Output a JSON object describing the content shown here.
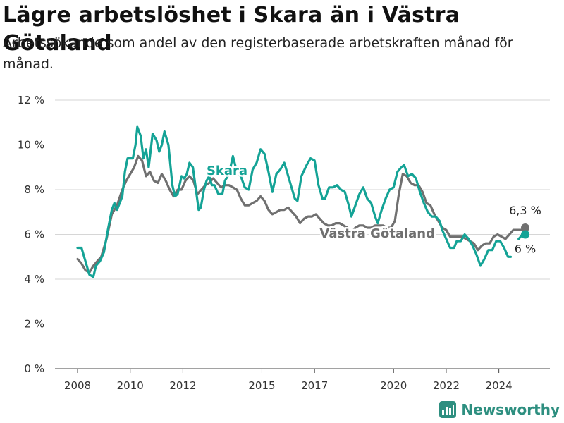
{
  "title": "Lägre arbetslöshet i Skara än i Västra Götaland",
  "subtitle": "Arbetssökande som andel av den registerbaserade arbetskraften månad för månad.",
  "brand": {
    "name": "Newsworthy",
    "icon": "newsworthy-logo-icon",
    "color": "#2e8f80"
  },
  "chart_data": {
    "type": "line",
    "title": "Lägre arbetslöshet i Skara än i Västra Götaland",
    "subtitle": "Arbetssökande som andel av den registerbaserade arbetskraften månad för månad.",
    "ylim": [
      0,
      12
    ],
    "xlim": [
      2007.0,
      2025.75
    ],
    "y_ticks": [
      0,
      2,
      4,
      6,
      8,
      10,
      12
    ],
    "y_tick_labels": [
      "0 %",
      "2 %",
      "4 %",
      "6 %",
      "8 %",
      "10 %",
      "12 %"
    ],
    "x_ticks": [
      2008,
      2010,
      2012,
      2015,
      2017,
      2020,
      2022,
      2024
    ],
    "x_tick_labels": [
      "2008",
      "2010",
      "2012",
      "2015",
      "2017",
      "2020",
      "2022",
      "2024"
    ],
    "grid": "horizontal",
    "series": [
      {
        "name": "Skara",
        "color": "#14a396",
        "end_label": "6 %",
        "points": [
          [
            2008.0,
            5.4
          ],
          [
            2008.15,
            5.4
          ],
          [
            2008.3,
            4.8
          ],
          [
            2008.45,
            4.2
          ],
          [
            2008.6,
            4.1
          ],
          [
            2008.7,
            4.6
          ],
          [
            2008.85,
            4.8
          ],
          [
            2009.0,
            5.2
          ],
          [
            2009.15,
            6.2
          ],
          [
            2009.3,
            7.1
          ],
          [
            2009.4,
            7.4
          ],
          [
            2009.5,
            7.1
          ],
          [
            2009.7,
            7.7
          ],
          [
            2009.8,
            8.8
          ],
          [
            2009.9,
            9.4
          ],
          [
            2010.1,
            9.4
          ],
          [
            2010.2,
            10.0
          ],
          [
            2010.27,
            10.8
          ],
          [
            2010.4,
            10.4
          ],
          [
            2010.5,
            9.4
          ],
          [
            2010.6,
            9.8
          ],
          [
            2010.7,
            9.0
          ],
          [
            2010.85,
            10.5
          ],
          [
            2011.0,
            10.2
          ],
          [
            2011.1,
            9.7
          ],
          [
            2011.2,
            10.0
          ],
          [
            2011.3,
            10.6
          ],
          [
            2011.45,
            10.0
          ],
          [
            2011.6,
            8.2
          ],
          [
            2011.7,
            7.7
          ],
          [
            2011.8,
            7.8
          ],
          [
            2011.95,
            8.6
          ],
          [
            2012.05,
            8.5
          ],
          [
            2012.15,
            8.7
          ],
          [
            2012.25,
            9.2
          ],
          [
            2012.38,
            9.0
          ],
          [
            2012.45,
            8.4
          ],
          [
            2012.6,
            7.1
          ],
          [
            2012.68,
            7.2
          ],
          [
            2012.8,
            8.0
          ],
          [
            2012.9,
            8.4
          ],
          [
            2013.0,
            8.6
          ],
          [
            2013.1,
            8.2
          ],
          [
            2013.2,
            8.2
          ],
          [
            2013.35,
            7.8
          ],
          [
            2013.5,
            7.8
          ],
          [
            2013.6,
            8.4
          ],
          [
            2013.75,
            8.7
          ],
          [
            2013.9,
            9.5
          ],
          [
            2014.05,
            8.8
          ],
          [
            2014.2,
            8.6
          ],
          [
            2014.35,
            8.1
          ],
          [
            2014.5,
            8.0
          ],
          [
            2014.65,
            8.9
          ],
          [
            2014.8,
            9.2
          ],
          [
            2014.95,
            9.8
          ],
          [
            2015.1,
            9.6
          ],
          [
            2015.25,
            8.8
          ],
          [
            2015.4,
            7.9
          ],
          [
            2015.55,
            8.7
          ],
          [
            2015.7,
            8.9
          ],
          [
            2015.85,
            9.2
          ],
          [
            2015.95,
            8.8
          ],
          [
            2016.1,
            8.2
          ],
          [
            2016.25,
            7.6
          ],
          [
            2016.35,
            7.5
          ],
          [
            2016.5,
            8.6
          ],
          [
            2016.7,
            9.1
          ],
          [
            2016.85,
            9.4
          ],
          [
            2017.0,
            9.3
          ],
          [
            2017.15,
            8.2
          ],
          [
            2017.3,
            7.6
          ],
          [
            2017.4,
            7.6
          ],
          [
            2017.55,
            8.1
          ],
          [
            2017.7,
            8.1
          ],
          [
            2017.85,
            8.2
          ],
          [
            2018.0,
            8.0
          ],
          [
            2018.15,
            7.9
          ],
          [
            2018.3,
            7.3
          ],
          [
            2018.4,
            6.8
          ],
          [
            2018.55,
            7.3
          ],
          [
            2018.7,
            7.8
          ],
          [
            2018.85,
            8.1
          ],
          [
            2019.0,
            7.6
          ],
          [
            2019.15,
            7.4
          ],
          [
            2019.3,
            6.8
          ],
          [
            2019.4,
            6.5
          ],
          [
            2019.55,
            7.1
          ],
          [
            2019.7,
            7.6
          ],
          [
            2019.85,
            8.0
          ],
          [
            2020.0,
            8.1
          ],
          [
            2020.15,
            8.8
          ],
          [
            2020.3,
            9.0
          ],
          [
            2020.4,
            9.1
          ],
          [
            2020.55,
            8.6
          ],
          [
            2020.7,
            8.7
          ],
          [
            2020.85,
            8.5
          ],
          [
            2021.0,
            7.9
          ],
          [
            2021.15,
            7.4
          ],
          [
            2021.3,
            7.0
          ],
          [
            2021.45,
            6.8
          ],
          [
            2021.6,
            6.8
          ],
          [
            2021.75,
            6.6
          ],
          [
            2021.85,
            6.2
          ],
          [
            2022.0,
            5.8
          ],
          [
            2022.15,
            5.4
          ],
          [
            2022.3,
            5.4
          ],
          [
            2022.4,
            5.7
          ],
          [
            2022.55,
            5.7
          ],
          [
            2022.7,
            6.0
          ],
          [
            2022.85,
            5.8
          ],
          [
            2023.0,
            5.5
          ],
          [
            2023.15,
            5.1
          ],
          [
            2023.3,
            4.6
          ],
          [
            2023.45,
            4.9
          ],
          [
            2023.6,
            5.3
          ],
          [
            2023.75,
            5.3
          ],
          [
            2023.9,
            5.7
          ],
          [
            2024.05,
            5.7
          ],
          [
            2024.2,
            5.4
          ],
          [
            2024.35,
            5.0
          ],
          [
            2024.45,
            5.0
          ]
        ],
        "points_after_gap": [
          [
            2024.75,
            5.8
          ],
          [
            2024.9,
            6.0
          ],
          [
            2025.0,
            6.0
          ]
        ]
      },
      {
        "name": "Västra Götaland",
        "color": "#707070",
        "end_label": "6,3 %",
        "points": [
          [
            2008.0,
            4.9
          ],
          [
            2008.15,
            4.7
          ],
          [
            2008.3,
            4.4
          ],
          [
            2008.45,
            4.3
          ],
          [
            2008.6,
            4.6
          ],
          [
            2008.75,
            4.8
          ],
          [
            2008.9,
            5.0
          ],
          [
            2009.1,
            5.8
          ],
          [
            2009.3,
            6.9
          ],
          [
            2009.5,
            7.3
          ],
          [
            2009.7,
            8.0
          ],
          [
            2009.85,
            8.4
          ],
          [
            2010.0,
            8.7
          ],
          [
            2010.15,
            9.0
          ],
          [
            2010.3,
            9.5
          ],
          [
            2010.45,
            9.3
          ],
          [
            2010.6,
            8.6
          ],
          [
            2010.75,
            8.8
          ],
          [
            2010.9,
            8.4
          ],
          [
            2011.05,
            8.3
          ],
          [
            2011.2,
            8.7
          ],
          [
            2011.35,
            8.4
          ],
          [
            2011.5,
            8.0
          ],
          [
            2011.65,
            7.7
          ],
          [
            2011.8,
            8.0
          ],
          [
            2011.95,
            8.0
          ],
          [
            2012.1,
            8.4
          ],
          [
            2012.25,
            8.6
          ],
          [
            2012.4,
            8.4
          ],
          [
            2012.55,
            7.8
          ],
          [
            2012.7,
            8.0
          ],
          [
            2012.85,
            8.2
          ],
          [
            2013.0,
            8.3
          ],
          [
            2013.15,
            8.5
          ],
          [
            2013.3,
            8.3
          ],
          [
            2013.45,
            8.1
          ],
          [
            2013.6,
            8.2
          ],
          [
            2013.75,
            8.2
          ],
          [
            2013.9,
            8.1
          ],
          [
            2014.05,
            8.0
          ],
          [
            2014.2,
            7.6
          ],
          [
            2014.35,
            7.3
          ],
          [
            2014.5,
            7.3
          ],
          [
            2014.65,
            7.4
          ],
          [
            2014.8,
            7.5
          ],
          [
            2014.95,
            7.7
          ],
          [
            2015.1,
            7.5
          ],
          [
            2015.25,
            7.1
          ],
          [
            2015.4,
            6.9
          ],
          [
            2015.55,
            7.0
          ],
          [
            2015.7,
            7.1
          ],
          [
            2015.85,
            7.1
          ],
          [
            2016.0,
            7.2
          ],
          [
            2016.15,
            7.0
          ],
          [
            2016.3,
            6.8
          ],
          [
            2016.45,
            6.5
          ],
          [
            2016.6,
            6.7
          ],
          [
            2016.75,
            6.8
          ],
          [
            2016.9,
            6.8
          ],
          [
            2017.05,
            6.9
          ],
          [
            2017.2,
            6.7
          ],
          [
            2017.35,
            6.5
          ],
          [
            2017.5,
            6.4
          ],
          [
            2017.65,
            6.4
          ],
          [
            2017.8,
            6.5
          ],
          [
            2017.95,
            6.5
          ],
          [
            2018.1,
            6.4
          ],
          [
            2018.25,
            6.3
          ],
          [
            2018.4,
            6.1
          ],
          [
            2018.55,
            6.3
          ],
          [
            2018.7,
            6.4
          ],
          [
            2018.85,
            6.4
          ],
          [
            2019.0,
            6.3
          ],
          [
            2019.15,
            6.3
          ],
          [
            2019.3,
            6.4
          ],
          [
            2019.45,
            6.4
          ],
          [
            2019.6,
            6.4
          ],
          [
            2019.75,
            6.3
          ],
          [
            2019.9,
            6.3
          ],
          [
            2020.05,
            6.6
          ],
          [
            2020.2,
            7.8
          ],
          [
            2020.35,
            8.7
          ],
          [
            2020.5,
            8.6
          ],
          [
            2020.65,
            8.3
          ],
          [
            2020.8,
            8.2
          ],
          [
            2020.95,
            8.2
          ],
          [
            2021.1,
            7.9
          ],
          [
            2021.25,
            7.4
          ],
          [
            2021.4,
            7.3
          ],
          [
            2021.55,
            6.9
          ],
          [
            2021.7,
            6.6
          ],
          [
            2021.85,
            6.3
          ],
          [
            2022.0,
            6.2
          ],
          [
            2022.15,
            5.9
          ],
          [
            2022.3,
            5.9
          ],
          [
            2022.45,
            5.9
          ],
          [
            2022.6,
            5.9
          ],
          [
            2022.75,
            5.8
          ],
          [
            2022.9,
            5.7
          ],
          [
            2023.05,
            5.6
          ],
          [
            2023.2,
            5.3
          ],
          [
            2023.35,
            5.5
          ],
          [
            2023.5,
            5.6
          ],
          [
            2023.65,
            5.6
          ],
          [
            2023.8,
            5.9
          ],
          [
            2023.95,
            6.0
          ],
          [
            2024.1,
            5.9
          ],
          [
            2024.25,
            5.8
          ],
          [
            2024.4,
            6.0
          ],
          [
            2024.55,
            6.2
          ],
          [
            2024.7,
            6.2
          ],
          [
            2024.85,
            6.2
          ],
          [
            2025.0,
            6.3
          ]
        ]
      }
    ]
  }
}
